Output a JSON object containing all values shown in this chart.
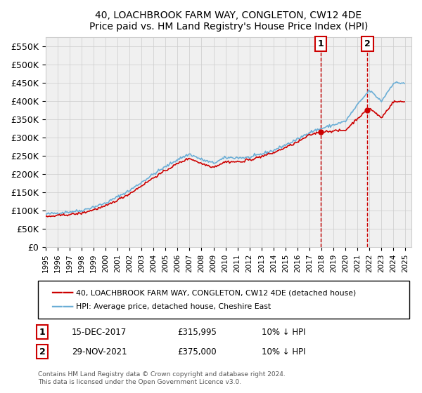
{
  "title": "40, LOACHBROOK FARM WAY, CONGLETON, CW12 4DE",
  "subtitle": "Price paid vs. HM Land Registry's House Price Index (HPI)",
  "ylabel_ticks": [
    "£0",
    "£50K",
    "£100K",
    "£150K",
    "£200K",
    "£250K",
    "£300K",
    "£350K",
    "£400K",
    "£450K",
    "£500K",
    "£550K"
  ],
  "ylim": [
    0,
    575000
  ],
  "yticks": [
    0,
    50000,
    100000,
    150000,
    200000,
    250000,
    300000,
    350000,
    400000,
    450000,
    500000,
    550000
  ],
  "hpi_color": "#6baed6",
  "price_color": "#cc0000",
  "vline_color": "#cc0000",
  "marker1_date_idx": 276,
  "marker2_date_idx": 324,
  "transaction1": {
    "label": "1",
    "date": "15-DEC-2017",
    "price": 315995,
    "note": "10% ↓ HPI"
  },
  "transaction2": {
    "label": "2",
    "date": "29-NOV-2021",
    "price": 375000,
    "note": "10% ↓ HPI"
  },
  "legend_line1": "40, LOACHBROOK FARM WAY, CONGLETON, CW12 4DE (detached house)",
  "legend_line2": "HPI: Average price, detached house, Cheshire East",
  "footer": "Contains HM Land Registry data © Crown copyright and database right 2024.\nThis data is licensed under the Open Government Licence v3.0.",
  "bg_color": "#ffffff",
  "grid_color": "#cccccc",
  "box_color": "#cc0000"
}
